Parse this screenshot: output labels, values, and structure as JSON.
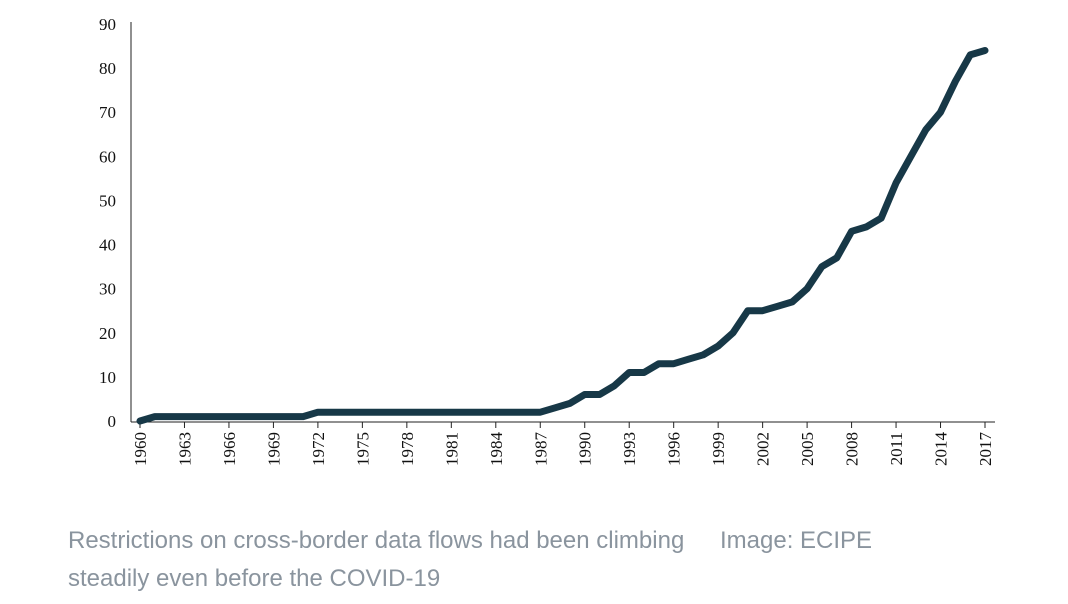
{
  "chart_data": {
    "type": "line",
    "title": "",
    "xlabel": "",
    "ylabel": "",
    "ylim": [
      0,
      90
    ],
    "yticks": [
      0,
      10,
      20,
      30,
      40,
      50,
      60,
      70,
      80,
      90
    ],
    "xlim": [
      1960,
      2017
    ],
    "xticks": [
      1960,
      1963,
      1966,
      1969,
      1972,
      1975,
      1978,
      1981,
      1984,
      1987,
      1990,
      1993,
      1996,
      1999,
      2002,
      2005,
      2008,
      2011,
      2014,
      2017
    ],
    "grid": false,
    "legend": "none",
    "line_color": "#173847",
    "series": [
      {
        "x": [
          1960,
          1961,
          1962,
          1963,
          1964,
          1965,
          1966,
          1967,
          1968,
          1969,
          1970,
          1971,
          1972,
          1973,
          1974,
          1975,
          1976,
          1977,
          1978,
          1979,
          1980,
          1981,
          1982,
          1983,
          1984,
          1985,
          1986,
          1987,
          1988,
          1989,
          1990,
          1991,
          1992,
          1993,
          1994,
          1995,
          1996,
          1997,
          1998,
          1999,
          2000,
          2001,
          2002,
          2003,
          2004,
          2005,
          2006,
          2007,
          2008,
          2009,
          2010,
          2011,
          2012,
          2013,
          2014,
          2015,
          2016,
          2017
        ],
        "values": [
          0,
          1,
          1,
          1,
          1,
          1,
          1,
          1,
          1,
          1,
          1,
          1,
          2,
          2,
          2,
          2,
          2,
          2,
          2,
          2,
          2,
          2,
          2,
          2,
          2,
          2,
          2,
          2,
          3,
          4,
          6,
          6,
          8,
          11,
          11,
          13,
          13,
          14,
          15,
          17,
          20,
          25,
          25,
          26,
          27,
          30,
          35,
          37,
          43,
          44,
          46,
          54,
          60,
          66,
          70,
          77,
          83,
          84
        ]
      }
    ]
  },
  "caption": {
    "text": "Restrictions on cross-border data flows had been climbing steadily even before the COVID-19",
    "credit": "Image: ECIPE"
  }
}
